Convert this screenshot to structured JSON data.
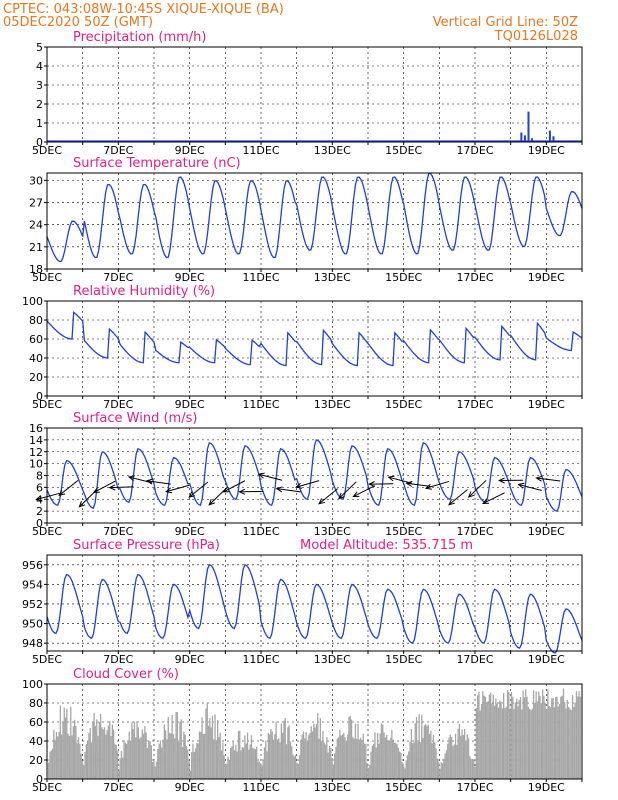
{
  "header": {
    "line1_left": "CPTEC:   043:08W-10:45S  XIQUE-XIQUE (BA)",
    "line2_left": "05DEC2020 50Z (GMT)",
    "line1_right": "Vertical Grid Line: 50Z",
    "line2_right": "TQ0126L028",
    "pressure_note": "Model Altitude: 535.715 m"
  },
  "colors": {
    "header": "#e87722",
    "title": "#e0208a",
    "line": "#1f3fd6",
    "bar": "#a6a6a6",
    "wind": "#000000"
  },
  "chart_data": [
    {
      "type": "bar",
      "title": "Precipitation (mm/h)",
      "x_tick_labels": [
        "5DEC",
        "7DEC",
        "9DEC",
        "11DEC",
        "13DEC",
        "15DEC",
        "17DEC",
        "19DEC"
      ],
      "ylim": [
        0,
        5
      ],
      "yticks": [
        0,
        1,
        2,
        3,
        4,
        5
      ],
      "series": [
        {
          "x": [
            18.3,
            18.4,
            18.5,
            18.6,
            19.1,
            19.2
          ],
          "values": [
            0.5,
            0.35,
            1.6,
            0.2,
            0.6,
            0.3
          ]
        }
      ]
    },
    {
      "type": "line",
      "title": "Surface Temperature (nC)",
      "x_tick_labels": [
        "5DEC",
        "7DEC",
        "9DEC",
        "11DEC",
        "13DEC",
        "15DEC",
        "17DEC",
        "19DEC"
      ],
      "ylim": [
        18,
        31
      ],
      "yticks": [
        18,
        21,
        24,
        27,
        30
      ],
      "series": [
        {
          "min": [
            19,
            19.5,
            20,
            19.5,
            20,
            20,
            19.5,
            20.5,
            20,
            20,
            20,
            20.5,
            20.5,
            21,
            22.5
          ],
          "max": [
            24.5,
            29.5,
            29.5,
            30.5,
            30,
            30,
            30,
            30.5,
            30.5,
            30.5,
            31,
            30.5,
            30.5,
            30.5,
            28.5
          ]
        }
      ]
    },
    {
      "type": "line",
      "title": "Relative Humidity (%)",
      "x_tick_labels": [
        "5DEC",
        "7DEC",
        "9DEC",
        "11DEC",
        "13DEC",
        "15DEC",
        "17DEC",
        "19DEC"
      ],
      "ylim": [
        0,
        100
      ],
      "yticks": [
        0,
        20,
        40,
        60,
        80,
        100
      ],
      "series": [
        {
          "min": [
            60,
            40,
            35,
            35,
            35,
            33,
            32,
            33,
            32,
            32,
            35,
            35,
            38,
            38,
            48
          ],
          "max": [
            95,
            78,
            75,
            62,
            65,
            65,
            75,
            78,
            75,
            75,
            78,
            80,
            82,
            86,
            72
          ]
        }
      ]
    },
    {
      "type": "line",
      "title": "Surface Wind (m/s)",
      "x_tick_labels": [
        "5DEC",
        "7DEC",
        "9DEC",
        "11DEC",
        "13DEC",
        "15DEC",
        "17DEC",
        "19DEC"
      ],
      "ylim": [
        0,
        16
      ],
      "yticks": [
        0,
        2,
        4,
        6,
        8,
        10,
        12,
        14,
        16
      ],
      "series": [
        {
          "min": [
            3,
            2.5,
            3.5,
            3,
            3,
            4,
            3,
            4,
            4,
            3,
            3,
            4,
            3.5,
            3,
            2
          ],
          "max": [
            10.5,
            12,
            12.5,
            11,
            13.5,
            13,
            12.5,
            14,
            13,
            12.5,
            13.5,
            12,
            11,
            11,
            9
          ]
        }
      ]
    },
    {
      "type": "line",
      "title": "Surface Pressure (hPa)",
      "x_tick_labels": [
        "5DEC",
        "7DEC",
        "9DEC",
        "11DEC",
        "13DEC",
        "15DEC",
        "17DEC",
        "19DEC"
      ],
      "ylim": [
        947.2,
        957
      ],
      "yticks": [
        948,
        950,
        952,
        954,
        956
      ],
      "series": [
        {
          "min": [
            949,
            948.5,
            949,
            948.5,
            949.5,
            949.5,
            948.5,
            948.5,
            948.5,
            948.5,
            948,
            948,
            948,
            947.5,
            947
          ],
          "max": [
            955,
            954.5,
            955,
            954,
            956,
            956,
            954.5,
            954,
            954,
            953.5,
            953.5,
            953,
            953.5,
            953,
            951.5
          ]
        }
      ]
    },
    {
      "type": "bar",
      "title": "Cloud Cover (%)",
      "x_tick_labels": [
        "5DEC",
        "7DEC",
        "9DEC",
        "11DEC",
        "13DEC",
        "15DEC",
        "17DEC",
        "19DEC"
      ],
      "ylim": [
        0,
        100
      ],
      "yticks": [
        0,
        20,
        40,
        60,
        80,
        100
      ],
      "series": [
        {
          "daily_peak": [
            82,
            78,
            68,
            75,
            80,
            55,
            70,
            75,
            75,
            68,
            70,
            60,
            85,
            95,
            95
          ]
        }
      ]
    }
  ]
}
